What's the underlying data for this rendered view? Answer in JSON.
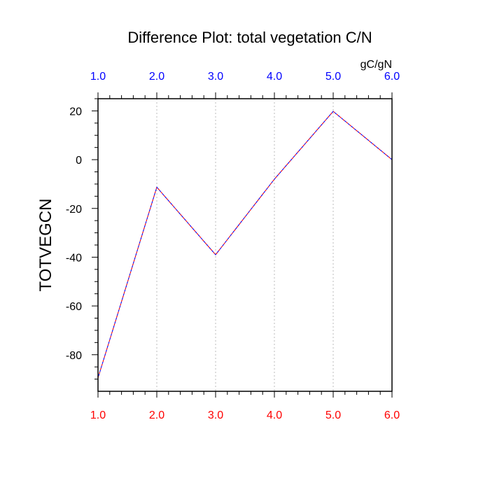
{
  "chart_data": {
    "type": "line",
    "title": "Difference Plot: total vegetation C/N",
    "units_label": "gC/gN",
    "ylabel": "TOTVEGCN",
    "xlim": [
      1.0,
      6.0
    ],
    "ylim": [
      -95,
      25
    ],
    "x_ticks": [
      "1.0",
      "2.0",
      "3.0",
      "4.0",
      "5.0",
      "6.0"
    ],
    "y_ticks": [
      "20",
      "0",
      "-20",
      "-40",
      "-60",
      "-80"
    ],
    "grid": "vertical dotted at x ticks",
    "series": [
      {
        "x": [
          1.0,
          2.0,
          3.0,
          4.0,
          5.0,
          6.0
        ],
        "y": [
          -89.5,
          -11.3,
          -39.0,
          -8.0,
          19.8,
          0.0
        ]
      }
    ],
    "colors": {
      "top_axis_labels": "#0000ff",
      "bottom_axis_labels": "#ff0000",
      "line_primary": "#ff0000",
      "line_secondary": "#0000ff",
      "grid": "#bbbbbb",
      "frame": "#000000"
    }
  }
}
